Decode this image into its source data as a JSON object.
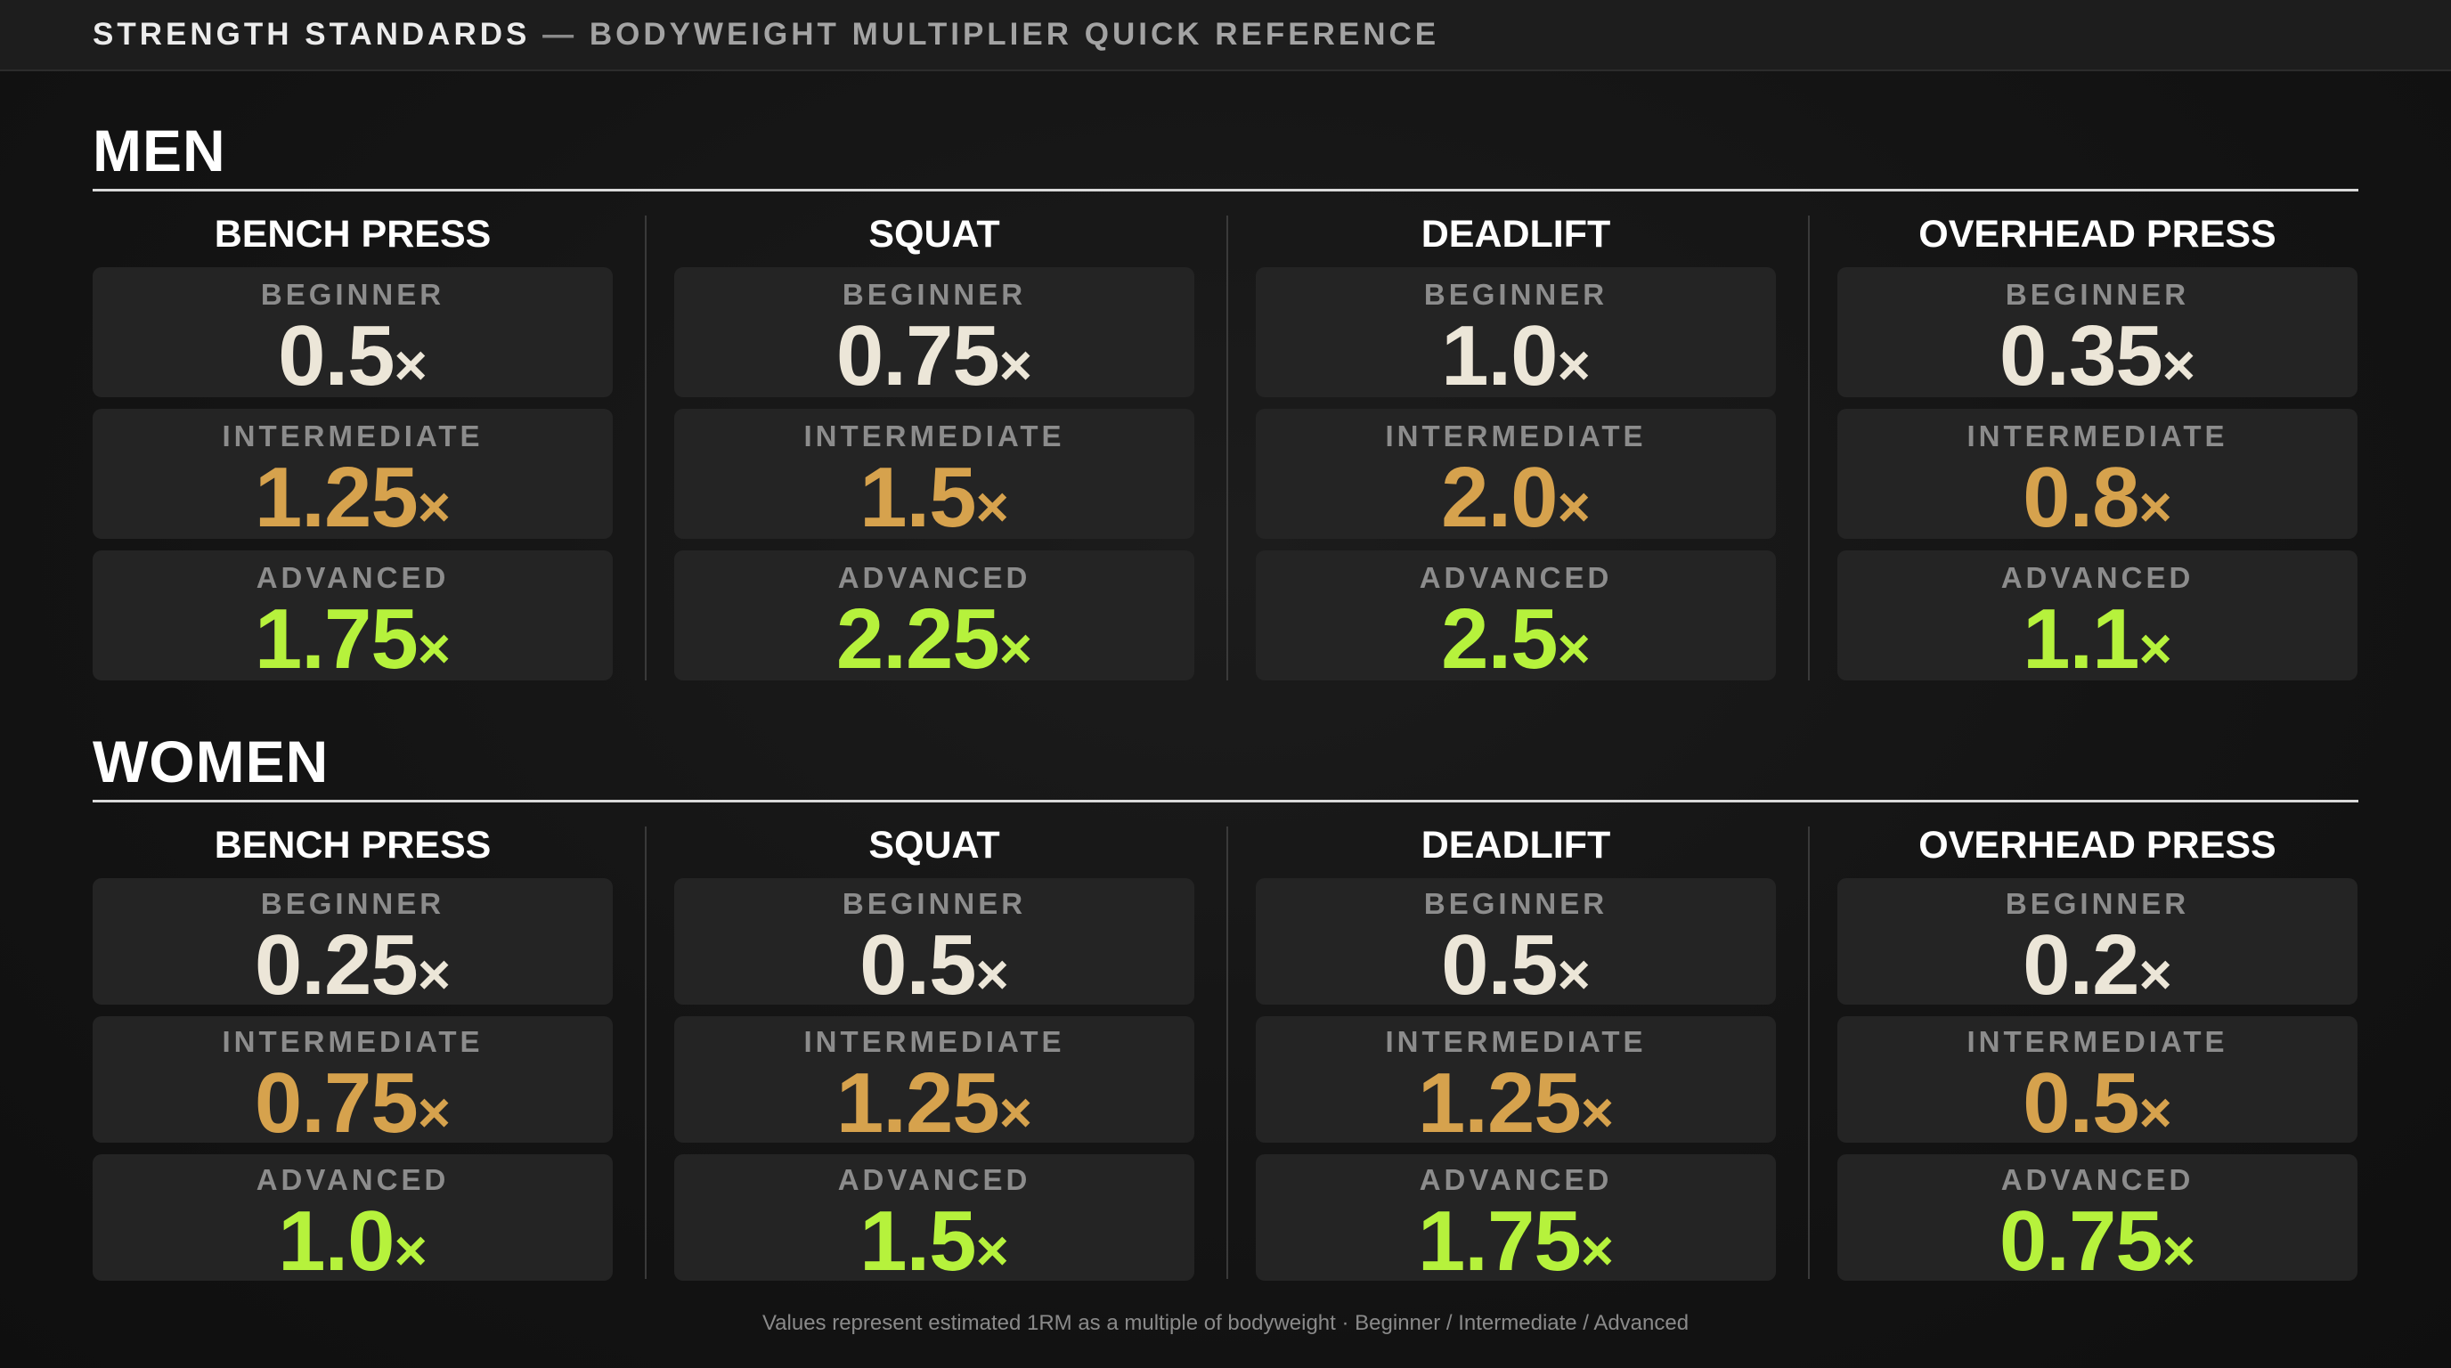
{
  "header": {
    "title": "STRENGTH STANDARDS",
    "separator": " — ",
    "subtitle": "BODYWEIGHT MULTIPLIER QUICK REFERENCE"
  },
  "multiplier_symbol": "×",
  "colors": {
    "beginner": "#ece6d8",
    "intermediate": "#d6a24d",
    "advanced": "#b6f23c"
  },
  "sections": [
    {
      "title": "MEN",
      "lifts": [
        {
          "name": "BENCH PRESS",
          "levels": [
            {
              "label": "BEGINNER",
              "value": "0.5"
            },
            {
              "label": "INTERMEDIATE",
              "value": "1.25"
            },
            {
              "label": "ADVANCED",
              "value": "1.75"
            }
          ]
        },
        {
          "name": "SQUAT",
          "levels": [
            {
              "label": "BEGINNER",
              "value": "0.75"
            },
            {
              "label": "INTERMEDIATE",
              "value": "1.5"
            },
            {
              "label": "ADVANCED",
              "value": "2.25"
            }
          ]
        },
        {
          "name": "DEADLIFT",
          "levels": [
            {
              "label": "BEGINNER",
              "value": "1.0"
            },
            {
              "label": "INTERMEDIATE",
              "value": "2.0"
            },
            {
              "label": "ADVANCED",
              "value": "2.5"
            }
          ]
        },
        {
          "name": "OVERHEAD PRESS",
          "levels": [
            {
              "label": "BEGINNER",
              "value": "0.35"
            },
            {
              "label": "INTERMEDIATE",
              "value": "0.8"
            },
            {
              "label": "ADVANCED",
              "value": "1.1"
            }
          ]
        }
      ]
    },
    {
      "title": "WOMEN",
      "lifts": [
        {
          "name": "BENCH PRESS",
          "levels": [
            {
              "label": "BEGINNER",
              "value": "0.25"
            },
            {
              "label": "INTERMEDIATE",
              "value": "0.75"
            },
            {
              "label": "ADVANCED",
              "value": "1.0"
            }
          ]
        },
        {
          "name": "SQUAT",
          "levels": [
            {
              "label": "BEGINNER",
              "value": "0.5"
            },
            {
              "label": "INTERMEDIATE",
              "value": "1.25"
            },
            {
              "label": "ADVANCED",
              "value": "1.5"
            }
          ]
        },
        {
          "name": "DEADLIFT",
          "levels": [
            {
              "label": "BEGINNER",
              "value": "0.5"
            },
            {
              "label": "INTERMEDIATE",
              "value": "1.25"
            },
            {
              "label": "ADVANCED",
              "value": "1.75"
            }
          ]
        },
        {
          "name": "OVERHEAD PRESS",
          "levels": [
            {
              "label": "BEGINNER",
              "value": "0.2"
            },
            {
              "label": "INTERMEDIATE",
              "value": "0.5"
            },
            {
              "label": "ADVANCED",
              "value": "0.75"
            }
          ]
        }
      ]
    }
  ],
  "footer": "Values represent estimated 1RM as a multiple of bodyweight · Beginner / Intermediate / Advanced"
}
